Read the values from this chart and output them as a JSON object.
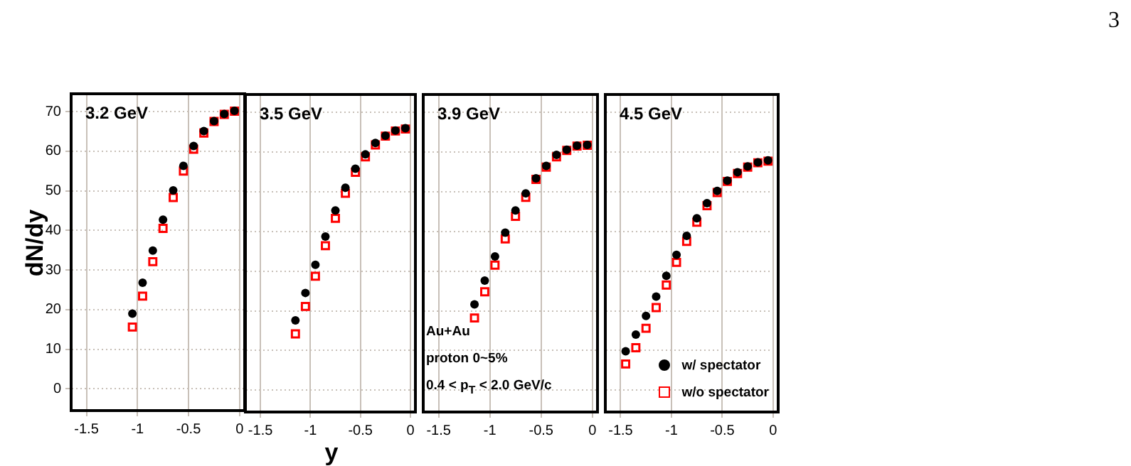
{
  "chart_data": [
    {
      "type": "scatter",
      "title": "3.2 GeV",
      "ylabel": "dN/dy",
      "xlim": [
        -1.65,
        0.05
      ],
      "xticks": [
        -1.5,
        -1,
        -0.5,
        0
      ],
      "ylim": [
        -5.5,
        74.5
      ],
      "yticks": [
        0,
        10,
        20,
        30,
        40,
        50,
        60,
        70
      ],
      "grid": true,
      "series": [
        {
          "color": "#000000",
          "marker": "circle",
          "x": [
            -1.05,
            -0.95,
            -0.85,
            -0.75,
            -0.65,
            -0.55,
            -0.45,
            -0.35,
            -0.25,
            -0.15,
            -0.05
          ],
          "values": [
            19.0,
            26.8,
            34.9,
            42.7,
            50.1,
            56.3,
            61.3,
            65.1,
            67.6,
            69.4,
            70.2
          ]
        },
        {
          "color": "#ff0000",
          "marker": "square",
          "x": [
            -1.05,
            -0.95,
            -0.85,
            -0.75,
            -0.65,
            -0.55,
            -0.45,
            -0.35,
            -0.25,
            -0.15,
            -0.05
          ],
          "values": [
            15.6,
            23.4,
            32.1,
            40.5,
            48.3,
            55.0,
            60.5,
            64.6,
            67.5,
            69.3,
            70.1
          ]
        }
      ]
    },
    {
      "type": "scatter",
      "title": "3.5 GeV",
      "xlabel": "y",
      "xlim": [
        -1.65,
        0.05
      ],
      "xticks": [
        -1.5,
        -1,
        -0.5,
        0
      ],
      "ylim": [
        -5.5,
        74.5
      ],
      "yticks": [
        0,
        10,
        20,
        30,
        40,
        50,
        60,
        70
      ],
      "grid": true,
      "tick_labels": "x",
      "series": [
        {
          "color": "#000000",
          "marker": "circle",
          "x": [
            -1.15,
            -1.05,
            -0.95,
            -0.85,
            -0.75,
            -0.65,
            -0.55,
            -0.45,
            -0.35,
            -0.25,
            -0.15,
            -0.05
          ],
          "values": [
            17.6,
            24.5,
            31.6,
            38.7,
            45.3,
            51.0,
            55.8,
            59.4,
            62.3,
            64.1,
            65.4,
            66.0
          ]
        },
        {
          "color": "#ff0000",
          "marker": "square",
          "x": [
            -1.15,
            -1.05,
            -0.95,
            -0.85,
            -0.75,
            -0.65,
            -0.55,
            -0.45,
            -0.35,
            -0.25,
            -0.15,
            -0.05
          ],
          "values": [
            14.2,
            21.1,
            28.7,
            36.4,
            43.3,
            49.6,
            54.9,
            58.8,
            61.8,
            64.0,
            65.3,
            65.8
          ]
        }
      ]
    },
    {
      "type": "scatter",
      "title": "3.9 GeV",
      "xlim": [
        -1.65,
        0.05
      ],
      "xticks": [
        -1.5,
        -1,
        -0.5,
        0
      ],
      "ylim": [
        -5.5,
        74.5
      ],
      "yticks": [
        0,
        10,
        20,
        30,
        40,
        50,
        60,
        70
      ],
      "grid": true,
      "tick_labels": "x",
      "annotations": [
        "Au+Au",
        "proton 0~5%",
        "0.4 < p$_{T}$ < 2.0 GeV/c"
      ],
      "series": [
        {
          "color": "#000000",
          "marker": "circle",
          "x": [
            -1.15,
            -1.05,
            -0.95,
            -0.85,
            -0.75,
            -0.65,
            -0.55,
            -0.45,
            -0.35,
            -0.25,
            -0.15,
            -0.05
          ],
          "values": [
            21.6,
            27.6,
            33.7,
            39.7,
            45.3,
            49.6,
            53.4,
            56.5,
            59.3,
            60.6,
            61.6,
            61.8
          ]
        },
        {
          "color": "#ff0000",
          "marker": "square",
          "x": [
            -1.15,
            -1.05,
            -0.95,
            -0.85,
            -0.75,
            -0.65,
            -0.55,
            -0.45,
            -0.35,
            -0.25,
            -0.15,
            -0.05
          ],
          "values": [
            18.2,
            24.8,
            31.5,
            38.1,
            43.8,
            48.6,
            53.1,
            56.2,
            58.8,
            60.4,
            61.5,
            61.7
          ]
        }
      ]
    },
    {
      "type": "scatter",
      "title": "4.5 GeV",
      "xlim": [
        -1.65,
        0.05
      ],
      "xticks": [
        -1.5,
        -1,
        -0.5,
        0
      ],
      "ylim": [
        -5.5,
        74.5
      ],
      "yticks": [
        0,
        10,
        20,
        30,
        40,
        50,
        60,
        70
      ],
      "grid": true,
      "tick_labels": "x",
      "legend": "bottom right",
      "annotations": [
        "3"
      ],
      "series": [
        {
          "name": "w/ spectator",
          "color": "#000000",
          "marker": "circle",
          "x": [
            -1.45,
            -1.35,
            -1.25,
            -1.15,
            -1.05,
            -0.95,
            -0.85,
            -0.75,
            -0.65,
            -0.55,
            -0.45,
            -0.35,
            -0.25,
            -0.15,
            -0.05
          ],
          "values": [
            9.8,
            14.0,
            18.7,
            23.6,
            28.8,
            34.1,
            38.9,
            43.3,
            47.1,
            50.2,
            52.8,
            54.9,
            56.4,
            57.4,
            57.9
          ]
        },
        {
          "name": "w/o spectator",
          "color": "#ff0000",
          "marker": "square",
          "x": [
            -1.45,
            -1.35,
            -1.25,
            -1.15,
            -1.05,
            -0.95,
            -0.85,
            -0.75,
            -0.65,
            -0.55,
            -0.45,
            -0.35,
            -0.25,
            -0.15,
            -0.05
          ],
          "values": [
            6.6,
            10.7,
            15.6,
            20.8,
            26.5,
            32.2,
            37.5,
            42.3,
            46.5,
            49.8,
            52.6,
            54.6,
            56.2,
            57.3,
            57.7
          ]
        }
      ]
    }
  ]
}
